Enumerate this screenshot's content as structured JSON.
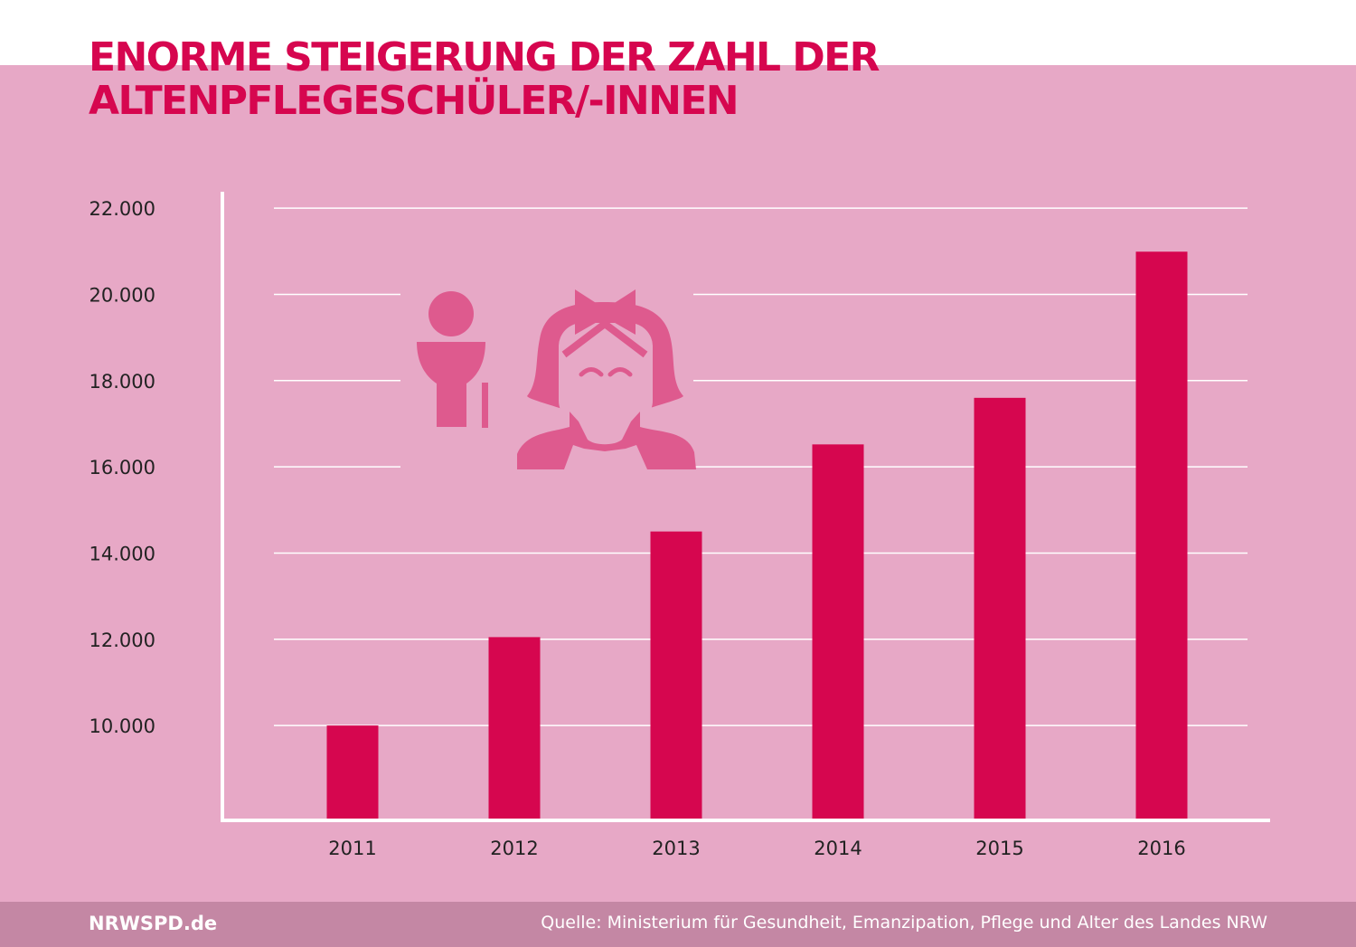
{
  "title_lines": [
    "ENORME STEIGERUNG DER ZAHL DER",
    "ALTENPFLEGESCHÜLER/-INNEN"
  ],
  "illustration": {
    "icons": [
      "student-icon",
      "nurse-icon"
    ],
    "color": "#de5a8e"
  },
  "colors": {
    "panel": "#e7a8c6",
    "bar": "#d6064f",
    "title": "#d6064f",
    "footer": "#c487a4",
    "axis": "#ffffff"
  },
  "chart_data": {
    "type": "bar",
    "title": "",
    "categories": [
      "2011",
      "2012",
      "2013",
      "2014",
      "2015",
      "2016"
    ],
    "values": [
      10000,
      12050,
      14500,
      16520,
      17600,
      20990
    ],
    "yticks": [
      10000,
      12000,
      14000,
      16000,
      18000,
      20000,
      22000
    ],
    "ytick_labels": [
      "10.000",
      "12.000",
      "14.000",
      "16.000",
      "18.000",
      "20.000",
      "22.000"
    ],
    "ylim": [
      7800,
      24100
    ],
    "grid": true,
    "legend": "none"
  },
  "footer": {
    "brand": "NRWSPD.de",
    "source": "Quelle: Ministerium für Gesundheit, Emanzipation, Pflege und Alter des Landes NRW"
  }
}
